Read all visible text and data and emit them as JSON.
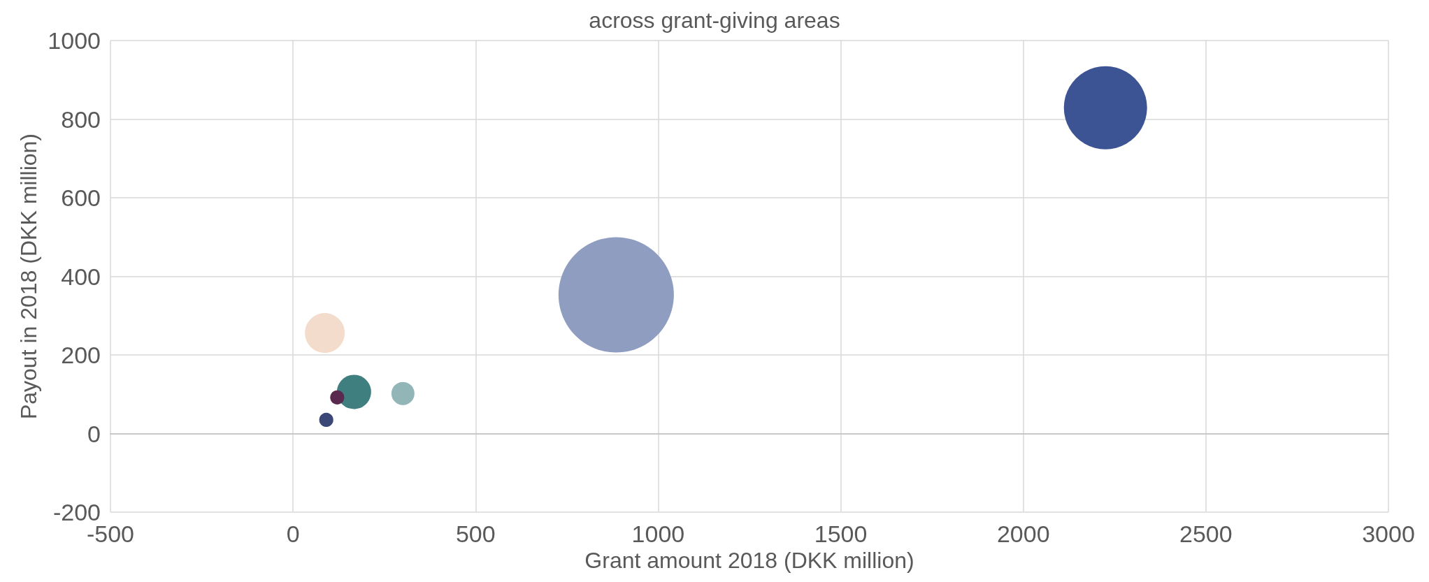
{
  "chart_data": {
    "type": "bubble",
    "title": "across grant-giving areas",
    "xlabel": "Grant amount 2018 (DKK million)",
    "ylabel": "Payout in 2018 (DKK million)",
    "x": [
      885,
      2225,
      87,
      167,
      301,
      121,
      91
    ],
    "values": [
      353,
      829,
      256,
      106,
      102,
      92,
      35
    ],
    "sizes": [
      1,
      0.52,
      0.119,
      0.088,
      0.04,
      0.015,
      0.015
    ],
    "colors": [
      "#8e9dc0",
      "#3d5494",
      "#f3dccb",
      "#3f7f80",
      "#92b5b8",
      "#5a2a4e",
      "#3b4777"
    ],
    "xlim": [
      -500,
      3000
    ],
    "xticks": [
      -500,
      0,
      500,
      1000,
      1500,
      2000,
      2500,
      3000
    ],
    "ylim": [
      -200,
      1000
    ],
    "yticks": [
      -200,
      0,
      200,
      400,
      600,
      800,
      1000
    ],
    "grid": true
  }
}
